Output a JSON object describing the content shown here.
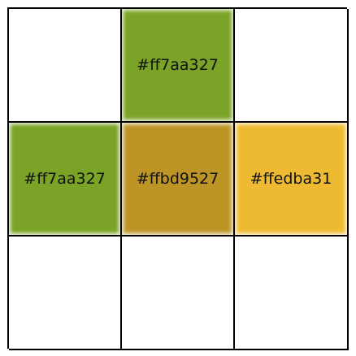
{
  "grid": {
    "rows": [
      [
        {
          "label": "",
          "color": "#ffffff",
          "filled": false
        },
        {
          "label": "#ff7aa327",
          "color": "#7aa327",
          "filled": true
        },
        {
          "label": "",
          "color": "#ffffff",
          "filled": false
        }
      ],
      [
        {
          "label": "#ff7aa327",
          "color": "#7aa327",
          "filled": true
        },
        {
          "label": "#ffbd9527",
          "color": "#bd9527",
          "filled": true
        },
        {
          "label": "#ffedba31",
          "color": "#edba31",
          "filled": true
        }
      ],
      [
        {
          "label": "",
          "color": "#ffffff",
          "filled": false
        },
        {
          "label": "",
          "color": "#ffffff",
          "filled": false
        },
        {
          "label": "",
          "color": "#ffffff",
          "filled": false
        }
      ]
    ]
  }
}
